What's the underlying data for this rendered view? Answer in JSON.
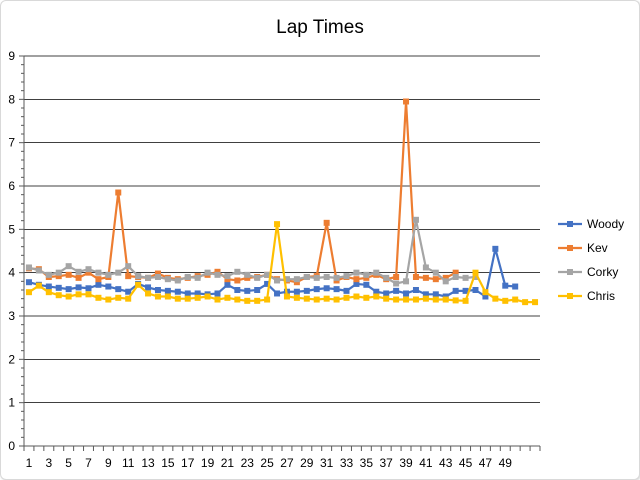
{
  "chart_data": {
    "type": "line",
    "title": "Lap Times",
    "xlabel": "",
    "ylabel": "",
    "ylim": [
      0,
      9
    ],
    "yticks": [
      0,
      1,
      2,
      3,
      4,
      5,
      6,
      7,
      8,
      9
    ],
    "x_categories": [
      1,
      2,
      3,
      4,
      5,
      6,
      7,
      8,
      9,
      10,
      11,
      12,
      13,
      14,
      15,
      16,
      17,
      18,
      19,
      20,
      21,
      22,
      23,
      24,
      25,
      26,
      27,
      28,
      29,
      30,
      31,
      32,
      33,
      34,
      35,
      36,
      37,
      38,
      39,
      40,
      41,
      42,
      43,
      44,
      45,
      46,
      47,
      48,
      49,
      50,
      51,
      52
    ],
    "x_tick_labels": [
      "1",
      "3",
      "5",
      "7",
      "9",
      "11",
      "13",
      "15",
      "17",
      "19",
      "21",
      "23",
      "25",
      "27",
      "29",
      "31",
      "33",
      "35",
      "37",
      "39",
      "41",
      "43",
      "45",
      "47",
      "49"
    ],
    "grid": true,
    "legend_position": "right",
    "series": [
      {
        "name": "Woody",
        "color": "#4472c4",
        "marker": "square",
        "values": [
          3.78,
          3.72,
          3.68,
          3.65,
          3.62,
          3.66,
          3.64,
          3.72,
          3.68,
          3.62,
          3.56,
          3.74,
          3.66,
          3.6,
          3.58,
          3.56,
          3.52,
          3.52,
          3.5,
          3.52,
          3.72,
          3.6,
          3.58,
          3.6,
          3.74,
          3.52,
          3.56,
          3.56,
          3.58,
          3.62,
          3.64,
          3.62,
          3.58,
          3.74,
          3.72,
          3.56,
          3.52,
          3.58,
          3.52,
          3.6,
          3.5,
          3.5,
          3.45,
          3.58,
          3.58,
          3.6,
          3.45,
          4.55,
          3.7,
          3.68
        ]
      },
      {
        "name": "Kev",
        "color": "#ed7d31",
        "marker": "square",
        "values": [
          4.1,
          4.08,
          3.9,
          3.92,
          3.95,
          3.88,
          4.0,
          3.85,
          3.9,
          5.85,
          3.92,
          3.9,
          3.88,
          3.98,
          3.88,
          3.85,
          3.88,
          3.92,
          3.95,
          4.02,
          3.85,
          3.82,
          3.88,
          3.9,
          3.95,
          3.85,
          3.82,
          3.78,
          3.9,
          3.92,
          5.15,
          3.82,
          3.9,
          3.85,
          3.88,
          3.95,
          3.85,
          3.9,
          7.95,
          3.9,
          3.88,
          3.85,
          3.88,
          4.0
        ]
      },
      {
        "name": "Corky",
        "color": "#a5a5a5",
        "marker": "square",
        "values": [
          4.12,
          4.05,
          3.95,
          4.0,
          4.15,
          4.02,
          4.08,
          4.0,
          3.95,
          4.0,
          4.15,
          3.92,
          3.88,
          3.9,
          3.85,
          3.82,
          3.9,
          3.88,
          4.0,
          3.95,
          3.92,
          4.02,
          3.95,
          3.88,
          3.95,
          3.82,
          3.85,
          3.85,
          3.9,
          3.88,
          3.9,
          3.88,
          3.92,
          4.0,
          3.95,
          4.0,
          3.88,
          3.75,
          3.8,
          5.22,
          4.12,
          4.0,
          3.8,
          3.9,
          3.88,
          3.9
        ]
      },
      {
        "name": "Chris",
        "color": "#ffc000",
        "marker": "square",
        "values": [
          3.55,
          3.7,
          3.55,
          3.48,
          3.45,
          3.5,
          3.5,
          3.42,
          3.38,
          3.42,
          3.4,
          3.72,
          3.52,
          3.45,
          3.45,
          3.4,
          3.4,
          3.42,
          3.45,
          3.38,
          3.42,
          3.38,
          3.35,
          3.35,
          3.38,
          5.12,
          3.45,
          3.42,
          3.4,
          3.38,
          3.4,
          3.38,
          3.42,
          3.45,
          3.42,
          3.45,
          3.4,
          3.38,
          3.38,
          3.38,
          3.4,
          3.38,
          3.38,
          3.36,
          3.35,
          4.0,
          3.55,
          3.4,
          3.35,
          3.38,
          3.32,
          3.32
        ]
      }
    ]
  }
}
